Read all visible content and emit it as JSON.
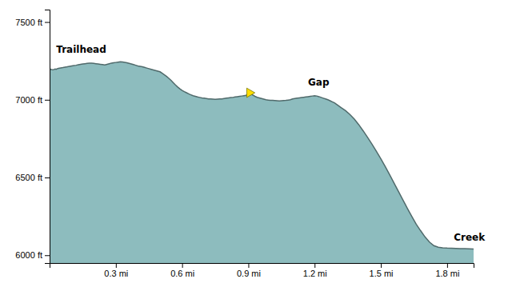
{
  "chart_data": {
    "type": "area",
    "color": "#8DBCBE",
    "xlim": [
      0.0,
      1.92
    ],
    "ylim": [
      5950,
      7580
    ],
    "xticks": [
      {
        "value": 0.3,
        "label": "0.3 mi"
      },
      {
        "value": 0.6,
        "label": "0.6 mi"
      },
      {
        "value": 0.9,
        "label": "0.9 mi"
      },
      {
        "value": 1.2,
        "label": "1.2 mi"
      },
      {
        "value": 1.5,
        "label": "1.5 mi"
      },
      {
        "value": 1.8,
        "label": "1.8 mi"
      }
    ],
    "yticks": [
      {
        "value": 6000,
        "label": "6000 ft"
      },
      {
        "value": 6500,
        "label": "6500 ft"
      },
      {
        "value": 7000,
        "label": "7000 ft"
      },
      {
        "value": 7500,
        "label": "7500 ft"
      }
    ],
    "grid": false,
    "annotations": [
      {
        "text": "Trailhead",
        "x": 0.03,
        "y": 7290
      },
      {
        "text": "Gap",
        "x": 1.17,
        "y": 7080
      },
      {
        "text": "Creek",
        "x": 1.83,
        "y": 6080
      }
    ],
    "waypoint": {
      "x": 0.905,
      "y": 7045
    },
    "x": [
      0.0,
      0.005,
      0.01,
      0.015,
      0.02,
      0.025,
      0.03,
      0.035,
      0.04,
      0.05,
      0.06,
      0.07,
      0.08,
      0.09,
      0.1,
      0.11,
      0.12,
      0.13,
      0.14,
      0.15,
      0.16,
      0.17,
      0.18,
      0.19,
      0.2,
      0.21,
      0.22,
      0.23,
      0.24,
      0.25,
      0.26,
      0.27,
      0.28,
      0.29,
      0.3,
      0.31,
      0.32,
      0.33,
      0.34,
      0.35,
      0.36,
      0.37,
      0.38,
      0.39,
      0.4,
      0.41,
      0.42,
      0.43,
      0.44,
      0.45,
      0.46,
      0.47,
      0.48,
      0.49,
      0.5,
      0.51,
      0.52,
      0.53,
      0.54,
      0.55,
      0.56,
      0.57,
      0.58,
      0.59,
      0.6,
      0.61,
      0.62,
      0.63,
      0.64,
      0.65,
      0.66,
      0.67,
      0.68,
      0.69,
      0.7,
      0.71,
      0.72,
      0.73,
      0.74,
      0.75,
      0.76,
      0.77,
      0.78,
      0.79,
      0.8,
      0.81,
      0.82,
      0.83,
      0.84,
      0.85,
      0.86,
      0.87,
      0.88,
      0.89,
      0.9,
      0.905,
      0.91,
      0.92,
      0.93,
      0.94,
      0.95,
      0.96,
      0.97,
      0.98,
      0.99,
      1.0,
      1.01,
      1.02,
      1.03,
      1.04,
      1.05,
      1.06,
      1.07,
      1.08,
      1.09,
      1.1,
      1.11,
      1.12,
      1.13,
      1.14,
      1.15,
      1.16,
      1.17,
      1.18,
      1.19,
      1.2,
      1.21,
      1.22,
      1.23,
      1.24,
      1.25,
      1.26,
      1.27,
      1.28,
      1.29,
      1.3,
      1.32,
      1.34,
      1.36,
      1.38,
      1.4,
      1.42,
      1.44,
      1.46,
      1.48,
      1.5,
      1.52,
      1.54,
      1.56,
      1.58,
      1.6,
      1.62,
      1.64,
      1.66,
      1.68,
      1.7,
      1.72,
      1.74,
      1.76,
      1.78,
      1.8,
      1.82,
      1.84,
      1.86,
      1.88,
      1.9,
      1.92
    ],
    "values": [
      7200,
      7196,
      7194,
      7193,
      7195,
      7198,
      7196,
      7200,
      7202,
      7205,
      7207,
      7210,
      7212,
      7215,
      7218,
      7220,
      7222,
      7225,
      7228,
      7230,
      7232,
      7234,
      7236,
      7235,
      7234,
      7232,
      7230,
      7228,
      7226,
      7224,
      7228,
      7232,
      7236,
      7238,
      7240,
      7242,
      7244,
      7243,
      7241,
      7238,
      7234,
      7230,
      7226,
      7222,
      7218,
      7215,
      7212,
      7208,
      7204,
      7200,
      7196,
      7192,
      7188,
      7184,
      7180,
      7170,
      7160,
      7150,
      7138,
      7125,
      7110,
      7095,
      7082,
      7070,
      7060,
      7052,
      7045,
      7038,
      7032,
      7026,
      7022,
      7018,
      7015,
      7012,
      7010,
      7008,
      7006,
      7005,
      7004,
      7003,
      7004,
      7005,
      7006,
      7008,
      7010,
      7012,
      7014,
      7015,
      7018,
      7020,
      7022,
      7024,
      7026,
      7028,
      7042,
      7048,
      7038,
      7030,
      7022,
      7016,
      7012,
      7008,
      7004,
      7000,
      6998,
      6996,
      6996,
      6995,
      6994,
      6993,
      6994,
      6995,
      6996,
      6998,
      7000,
      7005,
      7008,
      7010,
      7012,
      7014,
      7016,
      7018,
      7020,
      7022,
      7024,
      7026,
      7024,
      7020,
      7015,
      7010,
      7005,
      7000,
      6994,
      6987,
      6980,
      6970,
      6950,
      6930,
      6905,
      6875,
      6840,
      6800,
      6758,
      6714,
      6668,
      6620,
      6570,
      6518,
      6464,
      6410,
      6356,
      6302,
      6250,
      6200,
      6158,
      6118,
      6085,
      6062,
      6052,
      6048,
      6046,
      6045,
      6044,
      6043,
      6042,
      6041,
      6040
    ]
  }
}
